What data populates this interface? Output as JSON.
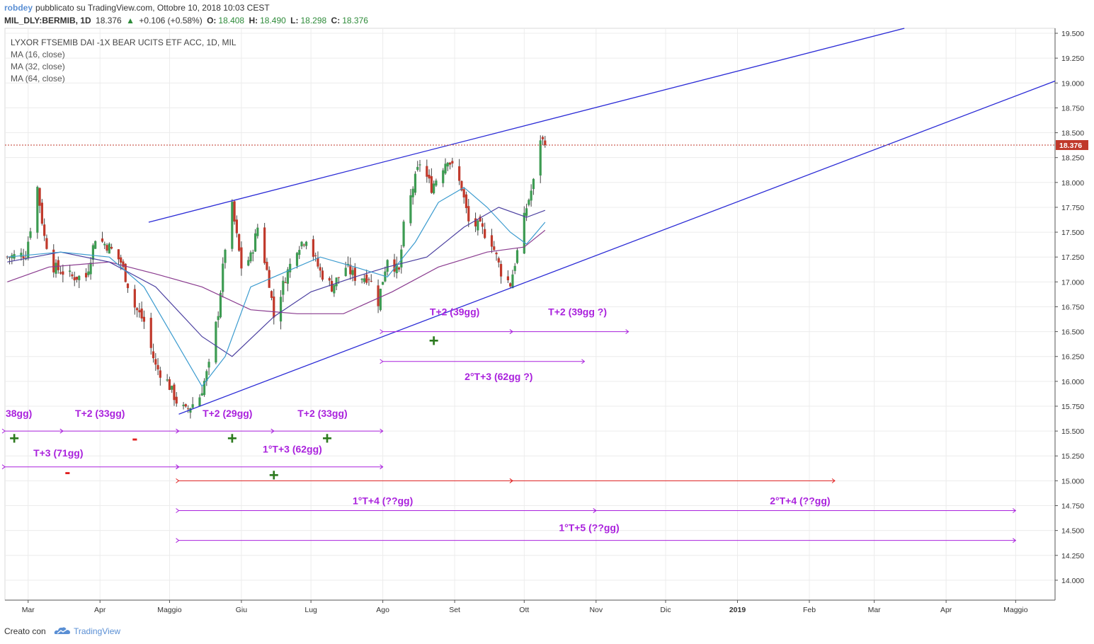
{
  "header": {
    "user": "robdey",
    "published": "pubblicato su TradingView.com, Ottobre 10, 2018 10:03 CEST",
    "symbol": "MIL_DLY:BERMIB, 1D",
    "last": "18.376",
    "change": "+0.106 (+0.58%)",
    "o_label": "O:",
    "o": "18.408",
    "h_label": "H:",
    "h": "18.490",
    "l_label": "L:",
    "l": "18.298",
    "c_label": "C:",
    "c": "18.376"
  },
  "footer": {
    "created_with": "Creato con",
    "brand": "TradingView",
    "logo_icon": "tradingview-cloud-icon"
  },
  "chart_data": {
    "type": "candlestick",
    "instrument_title": "LYXOR FTSEMIB DAI -1X BEAR UCITS ETF ACC, 1D, MIL",
    "indicators": [
      "MA (16, close)",
      "MA (32, close)",
      "MA (64, close)"
    ],
    "last_price_label": "18.376",
    "last_price": 18.376,
    "ylim": [
      13.8,
      19.55
    ],
    "yticks": [
      "19.500",
      "19.250",
      "19.000",
      "18.750",
      "18.500",
      "18.250",
      "18.000",
      "17.750",
      "17.500",
      "17.250",
      "17.000",
      "16.750",
      "16.500",
      "16.250",
      "16.000",
      "15.750",
      "15.500",
      "15.250",
      "15.000",
      "14.750",
      "14.500",
      "14.250",
      "14.000"
    ],
    "xlim": [
      "2018-02-19",
      "2019-05-18"
    ],
    "month_ticks": [
      {
        "label": "Mar",
        "date": "2018-03-01"
      },
      {
        "label": "Apr",
        "date": "2018-04-01"
      },
      {
        "label": "Maggio",
        "date": "2018-05-01"
      },
      {
        "label": "Giu",
        "date": "2018-06-01"
      },
      {
        "label": "Lug",
        "date": "2018-07-01"
      },
      {
        "label": "Ago",
        "date": "2018-08-01"
      },
      {
        "label": "Set",
        "date": "2018-09-01"
      },
      {
        "label": "Ott",
        "date": "2018-10-01"
      },
      {
        "label": "Nov",
        "date": "2018-11-01"
      },
      {
        "label": "Dic",
        "date": "2018-12-01"
      },
      {
        "label": "2019",
        "date": "2019-01-01"
      },
      {
        "label": "Feb",
        "date": "2019-02-01"
      },
      {
        "label": "Mar",
        "date": "2019-03-01"
      },
      {
        "label": "Apr",
        "date": "2019-04-01"
      },
      {
        "label": "Maggio",
        "date": "2019-05-01"
      }
    ],
    "close_path": [
      [
        "2018-02-20",
        17.25
      ],
      [
        "2018-02-28",
        17.28
      ],
      [
        "2018-03-05",
        17.95
      ],
      [
        "2018-03-08",
        17.45
      ],
      [
        "2018-03-12",
        17.15
      ],
      [
        "2018-03-20",
        17.05
      ],
      [
        "2018-03-26",
        17.05
      ],
      [
        "2018-03-30",
        17.45
      ],
      [
        "2018-04-05",
        17.35
      ],
      [
        "2018-04-10",
        17.2
      ],
      [
        "2018-04-16",
        16.75
      ],
      [
        "2018-04-20",
        16.6
      ],
      [
        "2018-04-25",
        16.15
      ],
      [
        "2018-04-30",
        16.0
      ],
      [
        "2018-05-04",
        15.8
      ],
      [
        "2018-05-08",
        15.7
      ],
      [
        "2018-05-14",
        15.85
      ],
      [
        "2018-05-18",
        16.15
      ],
      [
        "2018-05-22",
        16.7
      ],
      [
        "2018-05-25",
        17.35
      ],
      [
        "2018-05-28",
        17.75
      ],
      [
        "2018-06-01",
        17.15
      ],
      [
        "2018-06-05",
        17.25
      ],
      [
        "2018-06-08",
        17.55
      ],
      [
        "2018-06-13",
        17.0
      ],
      [
        "2018-06-15",
        16.65
      ],
      [
        "2018-06-20",
        17.05
      ],
      [
        "2018-06-25",
        17.35
      ],
      [
        "2018-06-29",
        17.45
      ],
      [
        "2018-07-05",
        17.1
      ],
      [
        "2018-07-10",
        16.95
      ],
      [
        "2018-07-16",
        17.15
      ],
      [
        "2018-07-20",
        17.05
      ],
      [
        "2018-07-26",
        17.05
      ],
      [
        "2018-07-30",
        16.8
      ],
      [
        "2018-08-03",
        17.25
      ],
      [
        "2018-08-08",
        17.1
      ],
      [
        "2018-08-10",
        17.55
      ],
      [
        "2018-08-14",
        17.95
      ],
      [
        "2018-08-17",
        18.2
      ],
      [
        "2018-08-22",
        17.95
      ],
      [
        "2018-08-29",
        18.25
      ],
      [
        "2018-09-04",
        17.95
      ],
      [
        "2018-09-07",
        17.6
      ],
      [
        "2018-09-12",
        17.55
      ],
      [
        "2018-09-17",
        17.4
      ],
      [
        "2018-09-21",
        17.1
      ],
      [
        "2018-09-25",
        16.98
      ],
      [
        "2018-09-28",
        17.3
      ],
      [
        "2018-10-02",
        17.75
      ],
      [
        "2018-10-05",
        18.0
      ],
      [
        "2018-10-08",
        18.45
      ],
      [
        "2018-10-10",
        18.376
      ]
    ],
    "ma_16": [
      [
        "2018-02-20",
        17.25
      ],
      [
        "2018-03-15",
        17.3
      ],
      [
        "2018-04-05",
        17.25
      ],
      [
        "2018-04-20",
        16.95
      ],
      [
        "2018-05-05",
        16.35
      ],
      [
        "2018-05-15",
        15.95
      ],
      [
        "2018-05-25",
        16.25
      ],
      [
        "2018-06-05",
        16.95
      ],
      [
        "2018-06-20",
        17.1
      ],
      [
        "2018-07-05",
        17.25
      ],
      [
        "2018-07-20",
        17.15
      ],
      [
        "2018-08-03",
        17.05
      ],
      [
        "2018-08-15",
        17.4
      ],
      [
        "2018-08-25",
        17.8
      ],
      [
        "2018-09-05",
        17.95
      ],
      [
        "2018-09-15",
        17.75
      ],
      [
        "2018-09-25",
        17.5
      ],
      [
        "2018-10-02",
        17.38
      ],
      [
        "2018-10-10",
        17.6
      ]
    ],
    "ma_32": [
      [
        "2018-02-20",
        17.2
      ],
      [
        "2018-03-15",
        17.3
      ],
      [
        "2018-04-05",
        17.2
      ],
      [
        "2018-04-25",
        16.95
      ],
      [
        "2018-05-15",
        16.45
      ],
      [
        "2018-05-28",
        16.25
      ],
      [
        "2018-06-15",
        16.65
      ],
      [
        "2018-07-01",
        16.9
      ],
      [
        "2018-07-20",
        17.05
      ],
      [
        "2018-08-03",
        17.15
      ],
      [
        "2018-08-20",
        17.25
      ],
      [
        "2018-09-05",
        17.55
      ],
      [
        "2018-09-20",
        17.75
      ],
      [
        "2018-10-02",
        17.65
      ],
      [
        "2018-10-10",
        17.72
      ]
    ],
    "ma_64": [
      [
        "2018-02-20",
        17.0
      ],
      [
        "2018-03-10",
        17.15
      ],
      [
        "2018-04-05",
        17.2
      ],
      [
        "2018-04-25",
        17.08
      ],
      [
        "2018-05-15",
        16.95
      ],
      [
        "2018-06-05",
        16.72
      ],
      [
        "2018-06-25",
        16.68
      ],
      [
        "2018-07-15",
        16.68
      ],
      [
        "2018-08-05",
        16.9
      ],
      [
        "2018-08-25",
        17.15
      ],
      [
        "2018-09-15",
        17.3
      ],
      [
        "2018-10-01",
        17.35
      ],
      [
        "2018-10-10",
        17.52
      ]
    ],
    "trendlines": [
      {
        "from": [
          "2018-04-22",
          17.6
        ],
        "to": [
          "2019-03-14",
          19.55
        ]
      },
      {
        "from": [
          "2018-05-05",
          15.67
        ],
        "to": [
          "2019-05-18",
          19.02
        ]
      }
    ],
    "cycle_annotations": [
      {
        "label": "T+2 (39gg)",
        "color": "#aa22dd",
        "from": [
          "2018-08-01",
          16.5
        ],
        "to": [
          "2018-09-26",
          16.5
        ],
        "label_at": [
          "2018-09-01",
          16.7
        ]
      },
      {
        "label": "T+2 (39gg ?)",
        "color": "#aa22dd",
        "from": [
          "2018-09-26",
          16.5
        ],
        "to": [
          "2018-11-15",
          16.5
        ],
        "label_at": [
          "2018-10-24",
          16.7
        ]
      },
      {
        "label": "2°T+3 (62gg ?)",
        "color": "#aa22dd",
        "from": [
          "2018-08-01",
          16.2
        ],
        "to": [
          "2018-10-27",
          16.2
        ],
        "label_at": [
          "2018-09-20",
          16.05
        ]
      },
      {
        "label": "38gg)",
        "color": "#aa22dd",
        "from": [
          "2018-02-19",
          15.5
        ],
        "to": [
          "2018-03-16",
          15.5
        ],
        "label_at": [
          "2018-02-25",
          15.68
        ]
      },
      {
        "label": "T+2 (33gg)",
        "color": "#aa22dd",
        "from": [
          "2018-03-16",
          15.5
        ],
        "to": [
          "2018-05-05",
          15.5
        ],
        "label_at": [
          "2018-04-01",
          15.68
        ]
      },
      {
        "label": "T+2 (29gg)",
        "color": "#aa22dd",
        "from": [
          "2018-05-05",
          15.5
        ],
        "to": [
          "2018-06-15",
          15.5
        ],
        "label_at": [
          "2018-05-26",
          15.68
        ]
      },
      {
        "label": "T+2 (33gg)",
        "color": "#aa22dd",
        "from": [
          "2018-06-15",
          15.5
        ],
        "to": [
          "2018-08-01",
          15.5
        ],
        "label_at": [
          "2018-07-06",
          15.68
        ]
      },
      {
        "label": "T+3 (71gg)",
        "color": "#aa22dd",
        "from": [
          "2018-02-19",
          15.14
        ],
        "to": [
          "2018-05-05",
          15.14
        ],
        "label_at": [
          "2018-03-14",
          15.28
        ]
      },
      {
        "label": "1°T+3 (62gg)",
        "color": "#aa22dd",
        "from": [
          "2018-05-05",
          15.14
        ],
        "to": [
          "2018-08-01",
          15.14
        ],
        "label_at": [
          "2018-06-23",
          15.32
        ]
      },
      {
        "label": "",
        "color": "#e02020",
        "from": [
          "2018-05-05",
          15.0
        ],
        "to": [
          "2018-09-26",
          15.0
        ]
      },
      {
        "label": "",
        "color": "#e02020",
        "from": [
          "2018-09-26",
          15.0
        ],
        "to": [
          "2019-02-12",
          15.0
        ]
      },
      {
        "label": "1°T+4 (??gg)",
        "color": "#aa22dd",
        "from": [
          "2018-05-05",
          14.7
        ],
        "to": [
          "2018-11-01",
          14.7
        ],
        "label_at": [
          "2018-08-01",
          14.8
        ]
      },
      {
        "label": "2°T+4 (??gg)",
        "color": "#aa22dd",
        "from": [
          "2018-11-01",
          14.7
        ],
        "to": [
          "2019-05-01",
          14.7
        ],
        "label_at": [
          "2019-01-28",
          14.8
        ]
      },
      {
        "label": "1°T+5 (??gg)",
        "color": "#aa22dd",
        "from": [
          "2018-05-05",
          14.4
        ],
        "to": [
          "2019-05-01",
          14.4
        ],
        "label_at": [
          "2018-10-29",
          14.53
        ]
      }
    ],
    "markers": [
      {
        "label": "+",
        "color": "#2d7a1f",
        "at": [
          "2018-02-23",
          15.42
        ]
      },
      {
        "label": "-",
        "color": "#e02020",
        "at": [
          "2018-04-16",
          15.42
        ]
      },
      {
        "label": "+",
        "color": "#2d7a1f",
        "at": [
          "2018-05-28",
          15.42
        ]
      },
      {
        "label": "+",
        "color": "#2d7a1f",
        "at": [
          "2018-07-08",
          15.42
        ]
      },
      {
        "label": "-",
        "color": "#e02020",
        "at": [
          "2018-03-18",
          15.08
        ]
      },
      {
        "label": "+",
        "color": "#2d7a1f",
        "at": [
          "2018-06-15",
          15.05
        ]
      },
      {
        "label": "+",
        "color": "#2d7a1f",
        "at": [
          "2018-08-23",
          16.4
        ]
      }
    ],
    "colors": {
      "up": "#3d9b52",
      "down": "#c0392b",
      "ma16": "#3b9bcf",
      "ma32": "#4b3fa0",
      "ma64": "#8a3b8f",
      "trend": "#2b2bd6",
      "price_line": "#c0392b"
    }
  }
}
